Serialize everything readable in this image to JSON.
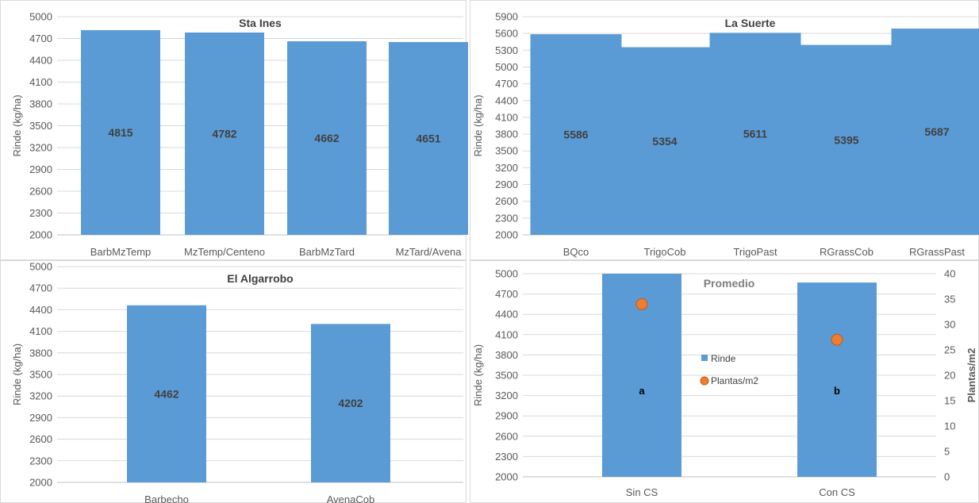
{
  "colors": {
    "bar": "#5b9bd5",
    "point": "#ed7d31",
    "grid": "#d9d9d9",
    "axis": "#bfbfbf"
  },
  "chart_data": [
    {
      "type": "bar",
      "title": "Sta Ines",
      "ylabel": "Rinde (kg/ha)",
      "ylim": [
        2000,
        5000
      ],
      "yticks": [
        "2000",
        "2300",
        "2600",
        "2900",
        "3200",
        "3500",
        "3800",
        "4100",
        "4400",
        "4700",
        "5000"
      ],
      "categories": [
        "BarbMzTemp",
        "MzTemp/Centeno",
        "BarbMzTard",
        "MzTard/Avena"
      ],
      "values": [
        4815,
        4782,
        4662,
        4651
      ],
      "data_labels": [
        "4815",
        "4782",
        "4662",
        "4651"
      ],
      "grid": true
    },
    {
      "type": "bar",
      "title": "La Suerte",
      "ylabel": "Rinde (kg/ha)",
      "ylim": [
        2000,
        5900
      ],
      "yticks": [
        "2000",
        "2300",
        "2600",
        "2900",
        "3200",
        "3500",
        "3800",
        "4100",
        "4400",
        "4700",
        "5000",
        "5300",
        "5600",
        "5900"
      ],
      "categories": [
        "BQco",
        "TrigoCob",
        "TrigoPast",
        "RGrassCob",
        "RGrassPast"
      ],
      "values": [
        5586,
        5354,
        5611,
        5395,
        5687
      ],
      "data_labels": [
        "5586",
        "5354",
        "5611",
        "5395",
        "5687"
      ],
      "grid": true
    },
    {
      "type": "bar",
      "title": "El Algarrobo",
      "ylabel": "Rinde (kg/ha)",
      "ylim": [
        2000,
        5000
      ],
      "yticks": [
        "2000",
        "2300",
        "2600",
        "2900",
        "3200",
        "3500",
        "3800",
        "4100",
        "4400",
        "4700",
        "5000"
      ],
      "categories": [
        "Barbecho",
        "AvenaCob"
      ],
      "values": [
        4462,
        4202
      ],
      "data_labels": [
        "4462",
        "4202"
      ],
      "grid": true
    },
    {
      "type": "bar",
      "title": "Promedio",
      "ylabel": "Rinde (kg/ha)",
      "y2label": "Plantas/m2",
      "ylim": [
        2000,
        5000
      ],
      "y2lim": [
        0,
        40
      ],
      "yticks": [
        "2000",
        "2300",
        "2600",
        "2900",
        "3200",
        "3500",
        "3800",
        "4100",
        "4400",
        "4700",
        "5000"
      ],
      "y2ticks": [
        "0",
        "5",
        "10",
        "15",
        "20",
        "25",
        "30",
        "35",
        "40"
      ],
      "categories": [
        "Sin CS",
        "Con CS"
      ],
      "series": [
        {
          "name": "Rinde",
          "kind": "bar",
          "axis": "left",
          "values": [
            5000,
            4870
          ]
        },
        {
          "name": "Plantas/m2",
          "kind": "point",
          "axis": "right",
          "values": [
            34,
            27
          ]
        }
      ],
      "significance_labels": [
        "a",
        "b"
      ],
      "legend": [
        "Rinde",
        "Plantas/m2"
      ],
      "legend_position": "center",
      "grid": true
    }
  ]
}
